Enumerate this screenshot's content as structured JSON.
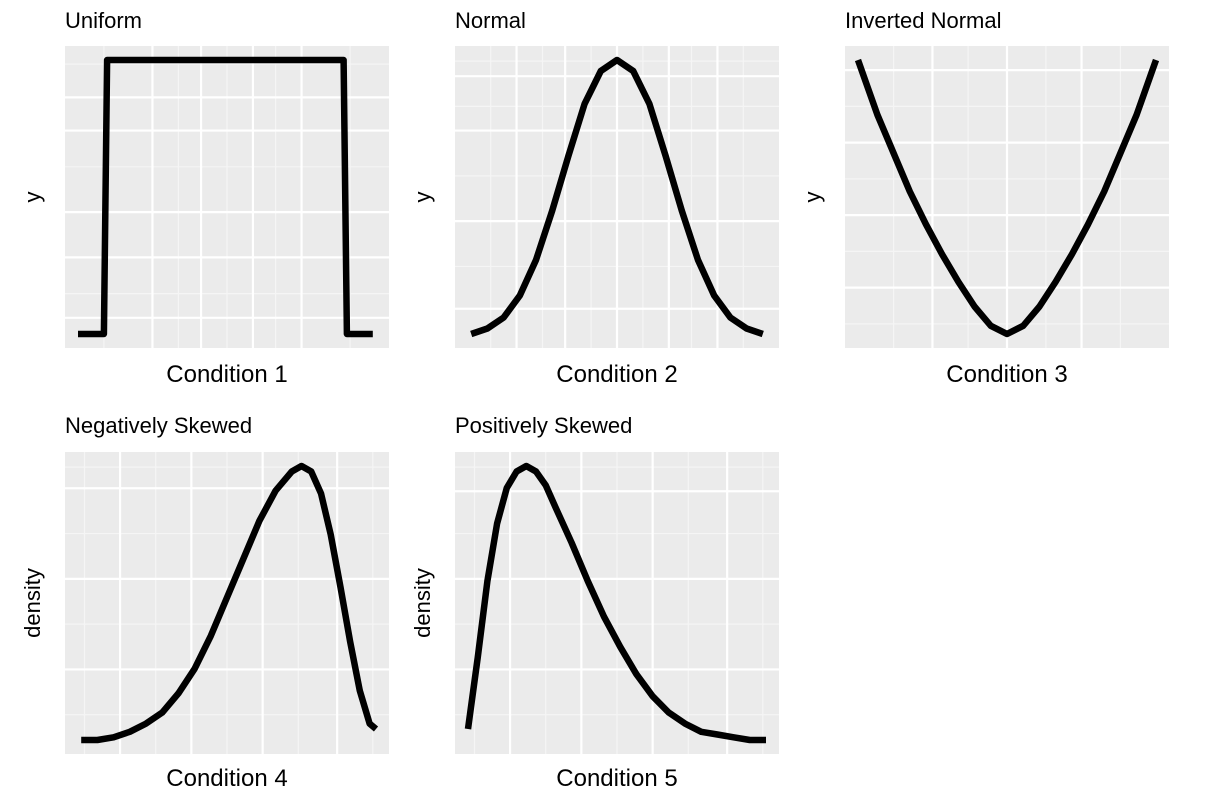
{
  "chart_data": [
    {
      "type": "line",
      "title": "Uniform",
      "xlabel": "Condition 1",
      "ylabel": "y",
      "xlim": [
        0,
        1
      ],
      "ylim": [
        0,
        1
      ],
      "grid": true,
      "series": [
        {
          "x": [
            0.04,
            0.12,
            0.13,
            0.86,
            0.87,
            0.95
          ],
          "y": [
            0.0,
            0.0,
            1.0,
            1.0,
            0.0,
            0.0
          ]
        }
      ]
    },
    {
      "type": "line",
      "title": "Normal",
      "xlabel": "Condition 2",
      "ylabel": "y",
      "xlim": [
        0,
        1
      ],
      "ylim": [
        0,
        1
      ],
      "grid": true,
      "series": [
        {
          "x": [
            0.05,
            0.1,
            0.15,
            0.2,
            0.25,
            0.3,
            0.35,
            0.4,
            0.45,
            0.5,
            0.55,
            0.6,
            0.65,
            0.7,
            0.75,
            0.8,
            0.85,
            0.9,
            0.95
          ],
          "y": [
            0.0,
            0.02,
            0.06,
            0.14,
            0.27,
            0.45,
            0.65,
            0.84,
            0.96,
            1.0,
            0.96,
            0.84,
            0.65,
            0.45,
            0.27,
            0.14,
            0.06,
            0.02,
            0.0
          ]
        }
      ]
    },
    {
      "type": "line",
      "title": "Inverted Normal",
      "xlabel": "Condition 3",
      "ylabel": "y",
      "xlim": [
        0,
        1
      ],
      "ylim": [
        0,
        1
      ],
      "grid": true,
      "series": [
        {
          "x": [
            0.04,
            0.1,
            0.15,
            0.2,
            0.25,
            0.3,
            0.35,
            0.4,
            0.45,
            0.5,
            0.55,
            0.6,
            0.65,
            0.7,
            0.75,
            0.8,
            0.85,
            0.9,
            0.96
          ],
          "y": [
            1.0,
            0.8,
            0.66,
            0.52,
            0.4,
            0.29,
            0.19,
            0.1,
            0.03,
            0.0,
            0.03,
            0.1,
            0.19,
            0.29,
            0.4,
            0.52,
            0.66,
            0.8,
            1.0
          ]
        }
      ]
    },
    {
      "type": "line",
      "title": "Negatively Skewed",
      "xlabel": "Condition 4",
      "ylabel": "density",
      "xlim": [
        0,
        1
      ],
      "ylim": [
        0,
        1
      ],
      "grid": true,
      "series": [
        {
          "x": [
            0.05,
            0.1,
            0.15,
            0.2,
            0.25,
            0.3,
            0.35,
            0.4,
            0.45,
            0.5,
            0.55,
            0.6,
            0.65,
            0.7,
            0.73,
            0.76,
            0.79,
            0.82,
            0.85,
            0.88,
            0.91,
            0.94,
            0.96
          ],
          "y": [
            0.0,
            0.0,
            0.01,
            0.03,
            0.06,
            0.1,
            0.17,
            0.26,
            0.38,
            0.52,
            0.66,
            0.8,
            0.91,
            0.98,
            1.0,
            0.98,
            0.9,
            0.75,
            0.56,
            0.36,
            0.18,
            0.06,
            0.04
          ]
        }
      ]
    },
    {
      "type": "line",
      "title": "Positively Skewed",
      "xlabel": "Condition 5",
      "ylabel": "density",
      "xlim": [
        0,
        1
      ],
      "ylim": [
        0,
        1
      ],
      "grid": true,
      "series": [
        {
          "x": [
            0.04,
            0.07,
            0.1,
            0.13,
            0.16,
            0.19,
            0.22,
            0.25,
            0.28,
            0.31,
            0.36,
            0.41,
            0.46,
            0.51,
            0.56,
            0.61,
            0.66,
            0.71,
            0.76,
            0.81,
            0.86,
            0.91,
            0.96
          ],
          "y": [
            0.04,
            0.3,
            0.58,
            0.79,
            0.92,
            0.98,
            1.0,
            0.98,
            0.93,
            0.85,
            0.72,
            0.58,
            0.45,
            0.34,
            0.24,
            0.16,
            0.1,
            0.06,
            0.03,
            0.02,
            0.01,
            0.0,
            0.0
          ]
        }
      ]
    }
  ]
}
